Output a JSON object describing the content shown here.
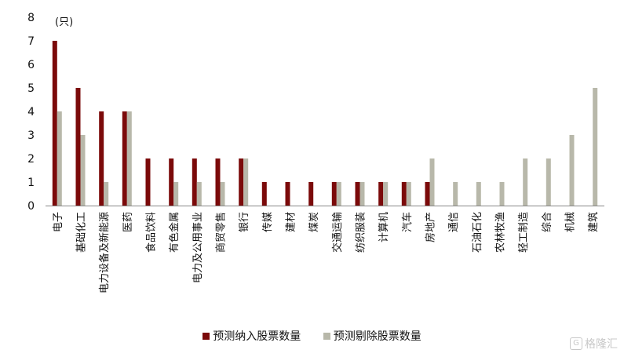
{
  "chart_data": {
    "type": "bar",
    "unit_label": "(只)",
    "ylim": [
      0,
      8
    ],
    "yticks": [
      0,
      1,
      2,
      3,
      4,
      5,
      6,
      7,
      8
    ],
    "grid": false,
    "legend_position": "bottom-center",
    "categories": [
      "电子",
      "基础化工",
      "电力设备及新能源",
      "医药",
      "食品饮料",
      "有色金属",
      "电力及公用事业",
      "商贸零售",
      "银行",
      "传媒",
      "建材",
      "煤炭",
      "交通运输",
      "纺织服装",
      "计算机",
      "汽车",
      "房地产",
      "通信",
      "石油石化",
      "农林牧渔",
      "轻工制造",
      "综合",
      "机械",
      "建筑"
    ],
    "series": [
      {
        "name": "预测纳入股票数量",
        "color": "#7b0a0a",
        "values": [
          7,
          5,
          4,
          4,
          2,
          2,
          2,
          2,
          2,
          1,
          1,
          1,
          1,
          1,
          1,
          1,
          1,
          0,
          0,
          0,
          0,
          0,
          0,
          0
        ]
      },
      {
        "name": "预测剔除股票数量",
        "color": "#b8b8aa",
        "values": [
          4,
          3,
          1,
          4,
          0,
          1,
          1,
          1,
          2,
          0,
          0,
          0,
          1,
          1,
          1,
          1,
          2,
          1,
          1,
          1,
          2,
          2,
          3,
          5
        ]
      }
    ]
  },
  "watermark": {
    "icon": "G",
    "text": "格隆汇"
  }
}
